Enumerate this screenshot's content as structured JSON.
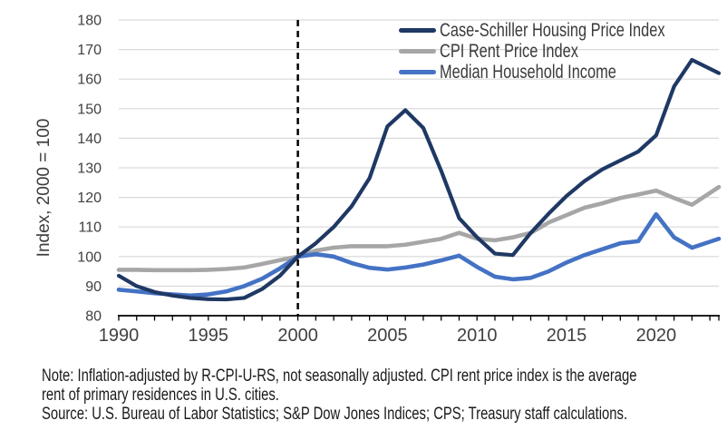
{
  "chart_data": {
    "type": "line",
    "title": "",
    "ylabel": "Index, 2000 = 100",
    "ylim": [
      80,
      180
    ],
    "ytick_step": 10,
    "x_start": 1990,
    "x_axis_end": 2023.5,
    "xticks_labeled": [
      1990,
      1995,
      2000,
      2005,
      2010,
      2015,
      2020
    ],
    "reference_line_x": 2000,
    "grid": "horizontal",
    "legend_position": "top-right",
    "x": [
      1990,
      1991,
      1992,
      1993,
      1994,
      1995,
      1996,
      1997,
      1998,
      1999,
      2000,
      2001,
      2002,
      2003,
      2004,
      2005,
      2006,
      2007,
      2008,
      2009,
      2010,
      2011,
      2012,
      2013,
      2014,
      2015,
      2016,
      2017,
      2018,
      2019,
      2020,
      2021,
      2022,
      2023
    ],
    "series": [
      {
        "name": "Case-Schiller Housing Price Index",
        "color": "#1f3864",
        "values": [
          93.5,
          90,
          88,
          86.8,
          86,
          85.6,
          85.5,
          86,
          89,
          93.5,
          100,
          104.5,
          110,
          117,
          126.5,
          144,
          149.5,
          143.5,
          129,
          113,
          106.5,
          101,
          100.5,
          108,
          114.5,
          120.5,
          125.5,
          129.5,
          132.5,
          135.5,
          141,
          157.5,
          166.5,
          163.5
        ]
      },
      {
        "name": "CPI Rent Price Index",
        "color": "#a6a6a6",
        "values": [
          95.5,
          95.5,
          95.4,
          95.4,
          95.4,
          95.5,
          95.8,
          96.3,
          97.5,
          98.8,
          100,
          102,
          103,
          103.5,
          103.5,
          103.5,
          104,
          105,
          106,
          108,
          106,
          105.5,
          106.5,
          108,
          111.5,
          114,
          116.5,
          118,
          119.8,
          121,
          122.3,
          119.8,
          117.5,
          121.5
        ]
      },
      {
        "name": "Median Household Income",
        "color": "#4472c4",
        "values": [
          88.8,
          88.2,
          87.6,
          87.2,
          86.8,
          87.2,
          88.2,
          90,
          92.5,
          96,
          100,
          100.8,
          100,
          97.8,
          96.2,
          95.6,
          96.3,
          97.3,
          98.7,
          100.3,
          96.5,
          93.2,
          92.3,
          92.8,
          95,
          98,
          100.5,
          102.5,
          104.5,
          105.2,
          114.3,
          106.5,
          103,
          105
        ]
      }
    ],
    "axis_colors": {
      "grid": "#d9d9d9",
      "axis": "#000000",
      "reference_line": "#000000",
      "tick_text": "#404040"
    }
  },
  "footer": {
    "note_line1": "Note: Inflation-adjusted by R-CPI-U-RS, not seasonally adjusted. CPI rent price index is the average",
    "note_line2": "rent of primary residences in U.S. cities.",
    "source": "Source: U.S. Bureau of Labor Statistics; S&P Dow Jones Indices; CPS; Treasury staff calculations."
  }
}
